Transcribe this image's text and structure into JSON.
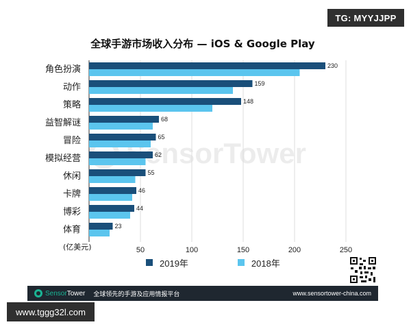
{
  "badges": {
    "telegram": "TG: MYYJJPP",
    "site": "www.tggg32l.com"
  },
  "watermark": {
    "text": "SensorTower"
  },
  "footer": {
    "brand_sensor": "Sensor",
    "brand_tower": "Tower",
    "slogan": "全球领先的手游及应用情报平台",
    "url": "www.sensortower-china.com"
  },
  "colors": {
    "series_2019": "#1a4f7a",
    "series_2018": "#5bc5ee",
    "footer_bg": "#1f2730"
  },
  "chart_data": {
    "type": "bar",
    "orientation": "horizontal",
    "title": "全球手游市场收入分布 — iOS & Google Play",
    "xlabel": "(亿美元)",
    "ylabel": "",
    "xlim": [
      0,
      250
    ],
    "xticks": [
      50,
      100,
      150,
      200,
      250
    ],
    "grid": true,
    "legend_position": "bottom",
    "categories": [
      "角色扮演",
      "动作",
      "策略",
      "益智解谜",
      "冒险",
      "模拟经营",
      "休闲",
      "卡牌",
      "博彩",
      "体育"
    ],
    "series": [
      {
        "name": "2019年",
        "values": [
          230,
          159,
          148,
          68,
          65,
          62,
          55,
          46,
          44,
          23
        ],
        "labeled": true
      },
      {
        "name": "2018年",
        "values": [
          205,
          140,
          120,
          62,
          60,
          55,
          45,
          42,
          40,
          20
        ],
        "labeled": false
      }
    ]
  }
}
